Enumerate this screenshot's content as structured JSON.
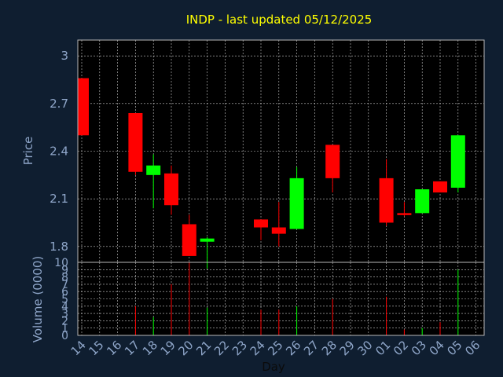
{
  "chart_data": {
    "type": "candlestick",
    "title": "INDP - last updated 05/12/2025",
    "ylabel": "Price",
    "volume_label": "Volume (0000)",
    "xlabel": "Day",
    "ylim": [
      1.7,
      3.1
    ],
    "yticks": [
      "1.8",
      "2.1",
      "2.4",
      "2.7",
      "3"
    ],
    "volume_ylim": [
      0,
      10
    ],
    "volume_yticks": [
      "0",
      "1",
      "2",
      "3",
      "4",
      "5",
      "6",
      "7",
      "8",
      "9",
      "10"
    ],
    "grid": true,
    "colors": {
      "up": "#00ff00",
      "down": "#ff0000",
      "background": "#0f1e30",
      "plot": "#000000",
      "grid": "#c8c8c8",
      "text": "#8fa6c9",
      "title": "#ffff00"
    },
    "x": [
      "14",
      "15",
      "16",
      "17",
      "18",
      "19",
      "20",
      "21",
      "22",
      "23",
      "24",
      "25",
      "26",
      "27",
      "28",
      "29",
      "30",
      "01",
      "02",
      "03",
      "04",
      "05",
      "06"
    ],
    "candles": [
      {
        "x": "14",
        "open": 2.86,
        "high": 2.86,
        "low": 2.5,
        "close": 2.5,
        "volume": 0
      },
      {
        "x": "17",
        "open": 2.64,
        "high": 2.64,
        "low": 2.25,
        "close": 2.27,
        "volume": 4
      },
      {
        "x": "18",
        "open": 2.25,
        "high": 2.38,
        "low": 2.04,
        "close": 2.31,
        "volume": 2.5
      },
      {
        "x": "19",
        "open": 2.26,
        "high": 2.31,
        "low": 2.0,
        "close": 2.06,
        "volume": 7
      },
      {
        "x": "20",
        "open": 1.94,
        "high": 2.0,
        "low": 1.74,
        "close": 1.74,
        "volume": 10
      },
      {
        "x": "21",
        "open": 1.83,
        "high": 1.86,
        "low": 1.66,
        "close": 1.85,
        "volume": 3.8
      },
      {
        "x": "24",
        "open": 1.97,
        "high": 1.97,
        "low": 1.84,
        "close": 1.92,
        "volume": 3.5
      },
      {
        "x": "25",
        "open": 1.92,
        "high": 2.08,
        "low": 1.8,
        "close": 1.88,
        "volume": 3.5
      },
      {
        "x": "26",
        "open": 1.91,
        "high": 2.3,
        "low": 1.91,
        "close": 2.23,
        "volume": 4
      },
      {
        "x": "28",
        "open": 2.44,
        "high": 2.44,
        "low": 2.14,
        "close": 2.23,
        "volume": 5
      },
      {
        "x": "01",
        "open": 2.23,
        "high": 2.35,
        "low": 1.93,
        "close": 1.95,
        "volume": 5.3
      },
      {
        "x": "02",
        "open": 2.01,
        "high": 2.08,
        "low": 1.99,
        "close": 2.0,
        "volume": 0.8
      },
      {
        "x": "03",
        "open": 2.01,
        "high": 2.16,
        "low": 2.01,
        "close": 2.16,
        "volume": 1
      },
      {
        "x": "04",
        "open": 2.21,
        "high": 2.21,
        "low": 2.14,
        "close": 2.14,
        "volume": 1.8
      },
      {
        "x": "05",
        "open": 2.17,
        "high": 2.5,
        "low": 2.14,
        "close": 2.5,
        "volume": 9
      }
    ]
  }
}
